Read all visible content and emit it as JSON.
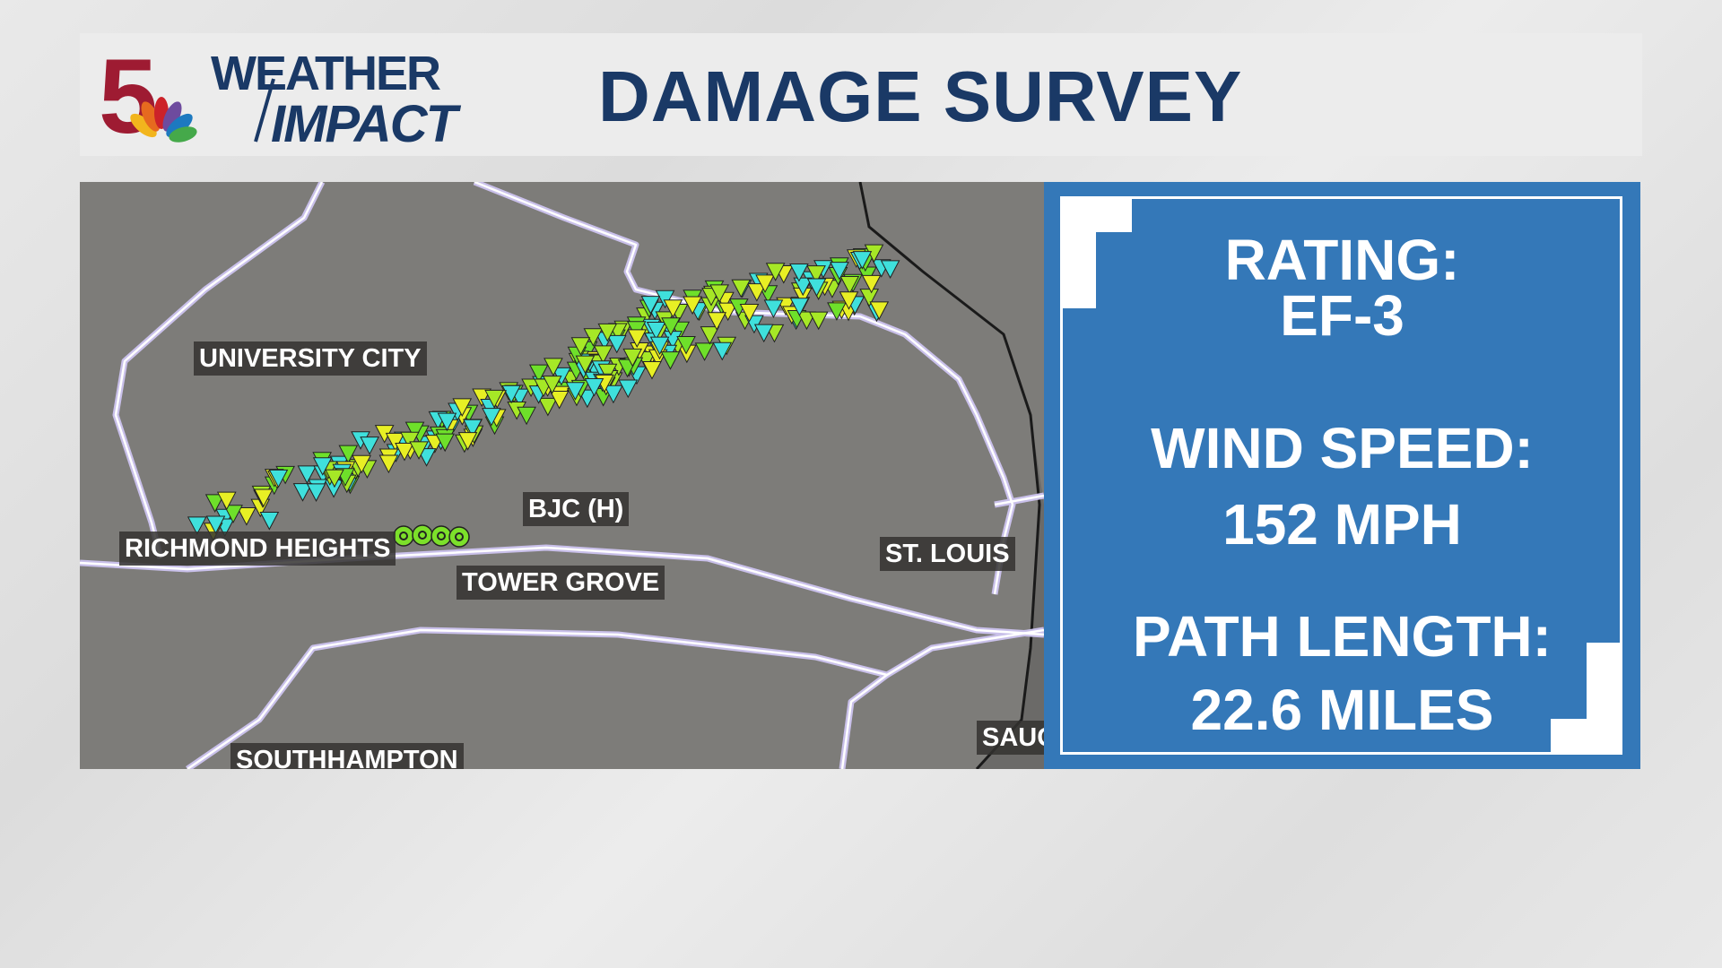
{
  "header": {
    "logo_number": "5",
    "logo_line1": "WEATHER",
    "logo_line2": "IMPACT",
    "title": "DAMAGE SURVEY"
  },
  "map": {
    "labels": [
      "UNIVERSITY CITY",
      "BJC (H)",
      "RICHMOND HEIGHTS",
      "TOWER GROVE",
      "ST. LOUIS",
      "SOUTHHAMPTON",
      "SAUG"
    ]
  },
  "panel": {
    "rating_label": "RATING:",
    "rating": "EF-3",
    "wind_label": "WIND SPEED:",
    "wind": "152 MPH",
    "path_label": "PATH LENGTH:",
    "path": "22.6 MILES"
  }
}
